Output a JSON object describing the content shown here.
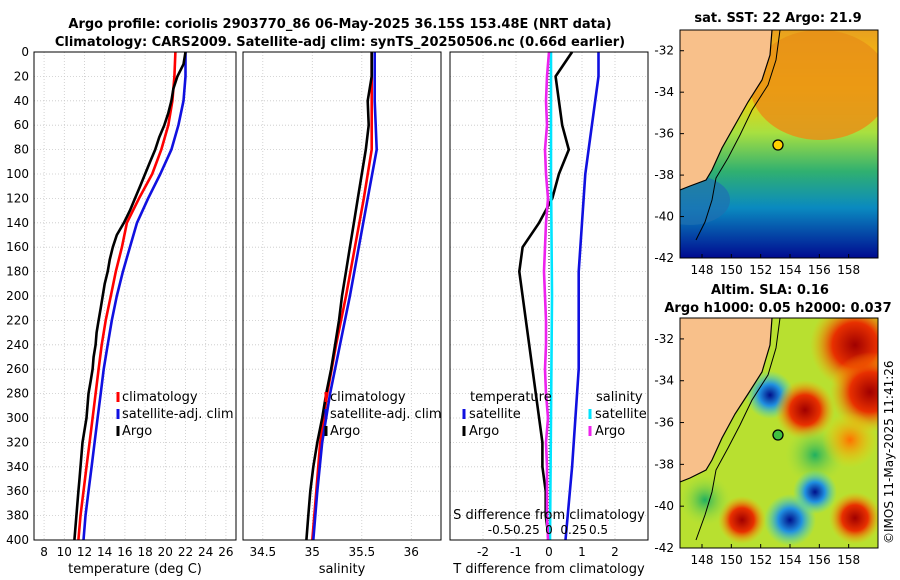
{
  "title_line1": "Argo profile: coriolis 2903770_86 06-May-2025 36.15S 153.48E (NRT data)",
  "title_line2": "Climatology: CARS2009. Satellite-adj clim: synTS_20250506.nc (0.66d earlier)",
  "depth_ticks": [
    0,
    20,
    40,
    60,
    80,
    100,
    120,
    140,
    160,
    180,
    200,
    220,
    240,
    260,
    280,
    300,
    320,
    340,
    360,
    380,
    400
  ],
  "colors": {
    "climatology": "#ff0000",
    "satellite": "#1010e0",
    "argo": "#000000",
    "sat_salinity": "#00e5ff",
    "argo_salinity": "#ee22ee",
    "land": "#f8c08a"
  },
  "chart_data": [
    {
      "type": "line",
      "name": "temperature",
      "xlabel": "temperature (deg C)",
      "ylabel": "depth",
      "xlim": [
        7,
        27
      ],
      "ylim": [
        400,
        0
      ],
      "x_ticks": [
        8,
        10,
        12,
        14,
        16,
        18,
        20,
        22,
        24,
        26
      ],
      "legend": [
        "climatology",
        "satellite-adj. clim",
        "Argo"
      ],
      "series": [
        {
          "name": "climatology",
          "depth": [
            0,
            20,
            40,
            60,
            80,
            100,
            120,
            140,
            160,
            180,
            200,
            220,
            240,
            260,
            280,
            300,
            320,
            340,
            360,
            380,
            400
          ],
          "values": [
            21.0,
            20.9,
            20.7,
            20.3,
            19.6,
            18.7,
            17.4,
            16.2,
            15.7,
            15.1,
            14.6,
            14.1,
            13.7,
            13.4,
            13.1,
            12.8,
            12.5,
            12.2,
            11.9,
            11.6,
            11.4
          ]
        },
        {
          "name": "satellite-adj. clim",
          "depth": [
            0,
            20,
            40,
            60,
            80,
            100,
            120,
            140,
            160,
            180,
            200,
            220,
            240,
            260,
            280,
            300,
            320,
            340,
            360,
            380,
            400
          ],
          "values": [
            22.0,
            22.0,
            21.8,
            21.3,
            20.6,
            19.5,
            18.3,
            17.2,
            16.5,
            15.8,
            15.2,
            14.7,
            14.3,
            13.9,
            13.6,
            13.3,
            13.0,
            12.7,
            12.4,
            12.1,
            11.9
          ]
        },
        {
          "name": "Argo",
          "depth": [
            0,
            10,
            20,
            30,
            40,
            50,
            60,
            70,
            80,
            90,
            100,
            110,
            120,
            130,
            140,
            150,
            160,
            170,
            180,
            190,
            200,
            210,
            220,
            230,
            240,
            250,
            260,
            270,
            280,
            290,
            300,
            310,
            320,
            330,
            340,
            350,
            360,
            370,
            380,
            390,
            400
          ],
          "values": [
            22.0,
            21.8,
            21.2,
            20.8,
            20.6,
            20.3,
            19.9,
            19.4,
            19.0,
            18.5,
            18.0,
            17.5,
            17.0,
            16.5,
            15.9,
            15.2,
            14.8,
            14.5,
            14.3,
            14.0,
            13.8,
            13.6,
            13.4,
            13.2,
            13.1,
            12.9,
            12.8,
            12.6,
            12.4,
            12.3,
            12.2,
            12.0,
            11.8,
            11.7,
            11.6,
            11.5,
            11.4,
            11.3,
            11.2,
            11.1,
            11.0
          ]
        }
      ]
    },
    {
      "type": "line",
      "name": "salinity",
      "xlabel": "salinity",
      "xlim": [
        34.3,
        36.3
      ],
      "ylim": [
        400,
        0
      ],
      "x_ticks": [
        34.5,
        35,
        35.5,
        36
      ],
      "legend": [
        "climatology",
        "satellite-adj. clim",
        "Argo"
      ],
      "series": [
        {
          "name": "climatology",
          "depth": [
            0,
            40,
            80,
            120,
            160,
            200,
            240,
            280,
            320,
            360,
            400
          ],
          "values": [
            35.6,
            35.6,
            35.6,
            35.52,
            35.43,
            35.34,
            35.24,
            35.15,
            35.08,
            35.04,
            35.0
          ]
        },
        {
          "name": "satellite-adj. clim",
          "depth": [
            0,
            40,
            80,
            120,
            160,
            200,
            240,
            280,
            320,
            360,
            400
          ],
          "values": [
            35.63,
            35.63,
            35.65,
            35.56,
            35.47,
            35.38,
            35.28,
            35.18,
            35.1,
            35.05,
            35.01
          ]
        },
        {
          "name": "Argo",
          "depth": [
            0,
            20,
            40,
            60,
            80,
            100,
            120,
            140,
            160,
            180,
            200,
            220,
            240,
            260,
            280,
            300,
            320,
            340,
            360,
            380,
            400
          ],
          "values": [
            35.6,
            35.6,
            35.56,
            35.57,
            35.54,
            35.5,
            35.46,
            35.42,
            35.38,
            35.34,
            35.3,
            35.27,
            35.23,
            35.19,
            35.14,
            35.1,
            35.05,
            35.01,
            34.98,
            34.96,
            34.94
          ]
        }
      ]
    },
    {
      "type": "line",
      "name": "difference",
      "xlabel": "T difference from climatology",
      "xlabel2": "S difference from climatology",
      "xlim": [
        -3,
        3
      ],
      "ylim": [
        400,
        0
      ],
      "x_ticks": [
        -2,
        -1,
        0,
        1,
        2
      ],
      "x2_ticks": [
        "-0.5",
        "-0.25",
        "0",
        "0.25",
        "0.5"
      ],
      "legend_temperature_title": "temperature",
      "legend_salinity_title": "salinity",
      "legend": [
        "satellite",
        "Argo"
      ],
      "series": [
        {
          "name": "T satellite",
          "depth": [
            0,
            20,
            40,
            60,
            80,
            100,
            140,
            180,
            220,
            260,
            300,
            340,
            400
          ],
          "values": [
            1.5,
            1.5,
            1.4,
            1.3,
            1.2,
            1.1,
            1.0,
            0.9,
            0.9,
            0.9,
            0.8,
            0.7,
            0.5
          ]
        },
        {
          "name": "T Argo",
          "depth": [
            0,
            20,
            40,
            60,
            80,
            100,
            120,
            140,
            160,
            180,
            200,
            220,
            240,
            260,
            280,
            300,
            320,
            340,
            360,
            380,
            400
          ],
          "values": [
            0.7,
            0.2,
            0.3,
            0.4,
            0.6,
            0.3,
            0.1,
            -0.3,
            -0.8,
            -0.9,
            -0.8,
            -0.7,
            -0.6,
            -0.5,
            -0.4,
            -0.3,
            -0.2,
            -0.2,
            -0.1,
            -0.1,
            0.0
          ]
        },
        {
          "name": "S satellite",
          "depth": [
            0,
            100,
            200,
            300,
            400
          ],
          "values": [
            0.02,
            0.02,
            0.03,
            0.02,
            0.01
          ]
        },
        {
          "name": "S Argo",
          "depth": [
            0,
            20,
            40,
            60,
            80,
            100,
            120,
            140,
            160,
            180,
            200,
            220,
            240,
            260,
            280,
            300,
            320,
            340,
            360,
            380,
            400
          ],
          "values": [
            0.0,
            -0.02,
            -0.03,
            -0.02,
            -0.04,
            -0.03,
            -0.01,
            -0.03,
            -0.04,
            -0.05,
            -0.04,
            -0.03,
            -0.03,
            -0.04,
            -0.03,
            -0.01,
            -0.03,
            -0.02,
            -0.02,
            -0.02,
            -0.01
          ]
        }
      ]
    }
  ],
  "sst_map": {
    "title": "sat. SST: 22 Argo: 21.9",
    "x_ticks": [
      "148",
      "150",
      "152",
      "154",
      "156",
      "158"
    ],
    "y_ticks": [
      "-32",
      "-34",
      "-36",
      "-38",
      "-40",
      "-42"
    ]
  },
  "sla_map": {
    "title1": "Altim. SLA: 0.16",
    "title2": "Argo h1000: 0.05 h2000: 0.037",
    "x_ticks": [
      "148",
      "150",
      "152",
      "154",
      "156",
      "158"
    ],
    "y_ticks": [
      "-32",
      "-34",
      "-36",
      "-38",
      "-40",
      "-42"
    ]
  },
  "credit": "©IMOS 11-May-2025 11:41:26"
}
